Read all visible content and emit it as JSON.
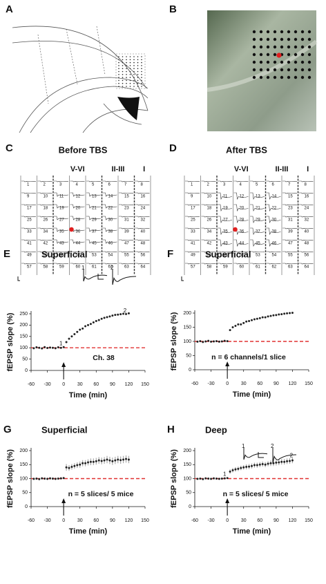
{
  "figure": {
    "panel_a": {
      "letter": "A"
    },
    "panel_b": {
      "letter": "B",
      "marker_color": "#e02020"
    },
    "grids": [
      {
        "letter": "C",
        "title": "Before TBS",
        "layers": [
          "V-VI",
          "II-III",
          "I"
        ]
      },
      {
        "letter": "D",
        "title": "After TBS",
        "layers": [
          "V-VI",
          "II-III",
          "I"
        ]
      }
    ],
    "channels": [
      1,
      2,
      3,
      4,
      5,
      6,
      7,
      8,
      9,
      10,
      11,
      12,
      13,
      14,
      15,
      16,
      17,
      18,
      19,
      20,
      21,
      22,
      23,
      24,
      25,
      26,
      27,
      28,
      29,
      30,
      31,
      32,
      33,
      34,
      35,
      36,
      37,
      38,
      39,
      40,
      41,
      42,
      43,
      44,
      45,
      46,
      47,
      48,
      49,
      50,
      51,
      52,
      53,
      54,
      55,
      56,
      57,
      58,
      59,
      60,
      61,
      62,
      63,
      64
    ],
    "marked_channel": 36
  },
  "chart_data": [
    {
      "type": "scatter",
      "panel": "E",
      "title": "Superficial",
      "xlabel": "Time (min)",
      "ylabel": "fEPSP slope (%)",
      "note": "Ch. 38",
      "xlim": [
        -60,
        150
      ],
      "xticks": [
        -60,
        -30,
        0,
        30,
        60,
        90,
        120,
        150
      ],
      "ylim": [
        0,
        250
      ],
      "yticks": [
        0,
        50,
        100,
        150,
        200,
        250
      ],
      "color": "#222",
      "reference_line": {
        "value": 100,
        "color": "#e03030"
      },
      "arrow_x": 0,
      "annotations": [
        {
          "text": "1",
          "x": -5,
          "y": 118
        },
        {
          "text": "2",
          "x": 113,
          "y": 262
        }
      ],
      "inset": {
        "labels": [
          "1",
          "2"
        ]
      },
      "x": [
        -55,
        -50,
        -45,
        -40,
        -35,
        -30,
        -25,
        -20,
        -15,
        -10,
        -5,
        0,
        5,
        10,
        15,
        20,
        25,
        30,
        35,
        40,
        45,
        50,
        55,
        60,
        65,
        70,
        75,
        80,
        85,
        90,
        95,
        100,
        105,
        110,
        115,
        120
      ],
      "values": [
        98,
        102,
        100,
        97,
        103,
        99,
        101,
        100,
        98,
        102,
        100,
        103,
        125,
        140,
        150,
        160,
        170,
        180,
        185,
        195,
        200,
        205,
        212,
        218,
        222,
        228,
        232,
        235,
        238,
        242,
        245,
        246,
        248,
        250,
        249,
        252
      ]
    },
    {
      "type": "scatter",
      "panel": "F",
      "title": "Superficial",
      "xlabel": "Time (min)",
      "ylabel": "fEPSP slope (%)",
      "note": "n = 6 channels/1 slice",
      "xlim": [
        -60,
        150
      ],
      "xticks": [
        -60,
        -30,
        0,
        30,
        60,
        90,
        120,
        150
      ],
      "ylim": [
        0,
        200
      ],
      "yticks": [
        0,
        50,
        100,
        150,
        200
      ],
      "color": "#222",
      "reference_line": {
        "value": 100,
        "color": "#e03030"
      },
      "arrow_x": 0,
      "x": [
        -55,
        -50,
        -45,
        -40,
        -35,
        -30,
        -25,
        -20,
        -15,
        -10,
        -5,
        0,
        5,
        10,
        15,
        20,
        25,
        30,
        35,
        40,
        45,
        50,
        55,
        60,
        65,
        70,
        75,
        80,
        85,
        90,
        95,
        100,
        105,
        110,
        115,
        120
      ],
      "values": [
        99,
        101,
        98,
        100,
        102,
        99,
        100,
        101,
        99,
        100,
        102,
        101,
        140,
        150,
        155,
        160,
        160,
        165,
        170,
        172,
        175,
        178,
        180,
        182,
        185,
        185,
        188,
        190,
        192,
        193,
        195,
        196,
        198,
        199,
        200,
        201
      ]
    },
    {
      "type": "scatter",
      "panel": "G",
      "title": "Superficial",
      "xlabel": "Time (min)",
      "ylabel": "fEPSP slope (%)",
      "note": "n = 5 slices/ 5 mice",
      "xlim": [
        -60,
        150
      ],
      "xticks": [
        -60,
        -30,
        0,
        30,
        60,
        90,
        120,
        150
      ],
      "ylim": [
        0,
        200
      ],
      "yticks": [
        0,
        50,
        100,
        150,
        200
      ],
      "color": "#222",
      "reference_line": {
        "value": 100,
        "color": "#e03030"
      },
      "arrow_x": 0,
      "x": [
        -55,
        -50,
        -45,
        -40,
        -35,
        -30,
        -25,
        -20,
        -15,
        -10,
        -5,
        0,
        5,
        10,
        15,
        20,
        25,
        30,
        35,
        40,
        45,
        50,
        55,
        60,
        65,
        70,
        75,
        80,
        85,
        90,
        95,
        100,
        105,
        110,
        115,
        120
      ],
      "values": [
        99,
        100,
        98,
        101,
        100,
        99,
        101,
        100,
        99,
        100,
        101,
        102,
        140,
        138,
        142,
        145,
        148,
        150,
        155,
        155,
        158,
        160,
        160,
        162,
        165,
        163,
        165,
        168,
        165,
        162,
        165,
        168,
        166,
        168,
        170,
        168
      ],
      "errors": [
        4,
        4,
        4,
        4,
        4,
        4,
        4,
        4,
        4,
        4,
        4,
        4,
        12,
        10,
        10,
        10,
        10,
        11,
        11,
        11,
        11,
        12,
        12,
        12,
        12,
        12,
        12,
        13,
        13,
        13,
        13,
        13,
        13,
        13,
        13,
        13
      ]
    },
    {
      "type": "scatter",
      "panel": "H",
      "title": "Deep",
      "xlabel": "Time (min)",
      "ylabel": "fEPSP slope (%)",
      "note": "n = 5 slices/ 5 mice",
      "xlim": [
        -60,
        150
      ],
      "xticks": [
        -60,
        -30,
        0,
        30,
        60,
        90,
        120,
        150
      ],
      "ylim": [
        0,
        200
      ],
      "yticks": [
        0,
        50,
        100,
        150,
        200
      ],
      "color": "#222",
      "reference_line": {
        "value": 100,
        "color": "#e03030"
      },
      "arrow_x": 0,
      "annotations": [
        {
          "text": "1",
          "x": -5,
          "y": 115
        },
        {
          "text": "2",
          "x": 118,
          "y": 182
        }
      ],
      "inset": {
        "labels": [
          "1",
          "2"
        ]
      },
      "x": [
        -55,
        -50,
        -45,
        -40,
        -35,
        -30,
        -25,
        -20,
        -15,
        -10,
        -5,
        0,
        5,
        10,
        15,
        20,
        25,
        30,
        35,
        40,
        45,
        50,
        55,
        60,
        65,
        70,
        75,
        80,
        85,
        90,
        95,
        100,
        105,
        110,
        115,
        120
      ],
      "values": [
        99,
        100,
        98,
        101,
        100,
        99,
        101,
        100,
        99,
        100,
        101,
        102,
        125,
        130,
        133,
        135,
        138,
        140,
        142,
        143,
        145,
        148,
        148,
        150,
        152,
        150,
        153,
        155,
        155,
        157,
        158,
        160,
        160,
        162,
        163,
        165
      ],
      "errors": [
        3,
        3,
        3,
        3,
        3,
        3,
        3,
        3,
        3,
        3,
        3,
        3,
        8,
        8,
        8,
        8,
        8,
        8,
        9,
        9,
        9,
        9,
        9,
        9,
        9,
        9,
        9,
        10,
        10,
        10,
        10,
        10,
        10,
        10,
        10,
        10
      ]
    }
  ]
}
